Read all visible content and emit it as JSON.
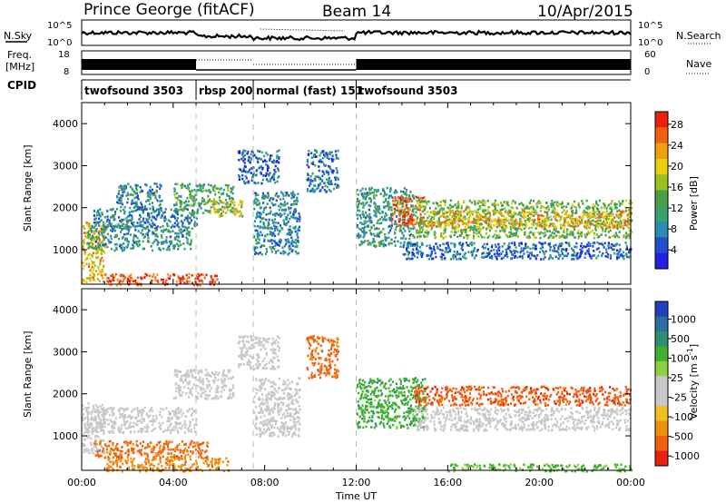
{
  "header": {
    "station": "Prince George (fitACF)",
    "beam": "Beam 14",
    "date": "10/Apr/2015"
  },
  "strip_labels": {
    "nsky": "N.Sky",
    "nsearch": "N.Search",
    "freq_line1": "Freq.",
    "freq_line2": "[MHz]",
    "nave": "Nave",
    "cpid": "CPID",
    "noise_ticks": [
      "10^5",
      "10^0"
    ],
    "freq_ticks": [
      "18",
      "8"
    ],
    "nave_ticks": [
      "60",
      "0"
    ]
  },
  "cpid_segments": [
    {
      "label": "twofsound 3503",
      "start": 0,
      "end": 5
    },
    {
      "label": "rbsp 200",
      "start": 5,
      "end": 7.5
    },
    {
      "label": "normal (fast) 151",
      "start": 7.5,
      "end": 12
    },
    {
      "label": "twofsound 3503",
      "start": 12,
      "end": 24
    }
  ],
  "colorbars": {
    "power": {
      "label": "Power [dB]",
      "ticks": [
        "28",
        "24",
        "20",
        "16",
        "12",
        "8",
        "4"
      ],
      "colors": [
        "#2020e0",
        "#2050d0",
        "#2a8cb0",
        "#3aa070",
        "#4aa040",
        "#9ac020",
        "#e8d010",
        "#f0a010",
        "#f06010",
        "#e82010"
      ]
    },
    "velocity": {
      "label": "Velocity [m s",
      "label_sup": "-1",
      "label_close": "]",
      "ticks": [
        "1000",
        "500",
        "100",
        "25",
        "-25",
        "-100",
        "-500",
        "-1000"
      ],
      "colors": [
        "#2040c0",
        "#2a70a0",
        "#2e9070",
        "#40b030",
        "#90d040",
        "#c8c8c8",
        "#c8c8c8",
        "#f0c020",
        "#f09010",
        "#f06010",
        "#e82010"
      ]
    }
  },
  "chart_data": [
    {
      "type": "heatmap",
      "name_panel": "power",
      "ylabel": "Slant Range [km]",
      "ylim": [
        180,
        4500
      ],
      "yticks": [
        "4000",
        "3000",
        "2000",
        "1000"
      ],
      "xlim": [
        0,
        24
      ],
      "xticks": [
        "00:00",
        "04:00",
        "08:00",
        "12:00",
        "16:00",
        "20:00",
        "00:00"
      ],
      "regions": [
        {
          "t0": 0.0,
          "t1": 1.0,
          "r0": 250,
          "r1": 1700,
          "v": 20
        },
        {
          "t0": 0.2,
          "t1": 4.8,
          "r0": 1000,
          "r1": 1600,
          "v": 10
        },
        {
          "t0": 0.5,
          "t1": 5.0,
          "r0": 1550,
          "r1": 2000,
          "v": 8
        },
        {
          "t0": 1.0,
          "t1": 6.0,
          "r0": 180,
          "r1": 450,
          "v": 27
        },
        {
          "t0": 1.5,
          "t1": 3.5,
          "r0": 2000,
          "r1": 2600,
          "v": 8
        },
        {
          "t0": 4.0,
          "t1": 6.6,
          "r0": 1900,
          "r1": 2600,
          "v": 12
        },
        {
          "t0": 5.5,
          "t1": 7.0,
          "r0": 1800,
          "r1": 2200,
          "v": 18
        },
        {
          "t0": 6.8,
          "t1": 8.6,
          "r0": 2600,
          "r1": 3400,
          "v": 6
        },
        {
          "t0": 7.5,
          "t1": 9.5,
          "r0": 900,
          "r1": 2400,
          "v": 8
        },
        {
          "t0": 9.8,
          "t1": 11.2,
          "r0": 2400,
          "r1": 3400,
          "v": 7
        },
        {
          "t0": 12.0,
          "t1": 14.5,
          "r0": 1100,
          "r1": 2500,
          "v": 10
        },
        {
          "t0": 13.5,
          "t1": 15.0,
          "r0": 1600,
          "r1": 2300,
          "v": 25
        },
        {
          "t0": 14.5,
          "t1": 24.0,
          "r0": 1300,
          "r1": 2200,
          "v": 14
        },
        {
          "t0": 15.0,
          "t1": 24.0,
          "r0": 1550,
          "r1": 1950,
          "v": 22
        },
        {
          "t0": 14.0,
          "t1": 24.0,
          "r0": 800,
          "r1": 1200,
          "v": 6
        }
      ]
    },
    {
      "type": "heatmap",
      "name_panel": "velocity",
      "ylabel": "Slant Range [km]",
      "ylim": [
        180,
        4500
      ],
      "yticks": [
        "4000",
        "3000",
        "2000",
        "1000"
      ],
      "xlim": [
        0,
        24
      ],
      "xticks": [
        "00:00",
        "04:00",
        "08:00",
        "12:00",
        "16:00",
        "20:00",
        "00:00"
      ],
      "xlabel": "Time UT",
      "regions": [
        {
          "t0": 0.0,
          "t1": 1.0,
          "r0": 600,
          "r1": 1800,
          "v": 0
        },
        {
          "t0": 0.2,
          "t1": 5.0,
          "r0": 1100,
          "r1": 1700,
          "v": 0
        },
        {
          "t0": 1.0,
          "t1": 6.5,
          "r0": 180,
          "r1": 500,
          "v": -200
        },
        {
          "t0": 0.5,
          "t1": 5.5,
          "r0": 500,
          "r1": 900,
          "v": -300
        },
        {
          "t0": 4.0,
          "t1": 6.6,
          "r0": 1900,
          "r1": 2600,
          "v": 0
        },
        {
          "t0": 6.8,
          "t1": 8.6,
          "r0": 2600,
          "r1": 3400,
          "v": 0
        },
        {
          "t0": 7.5,
          "t1": 9.5,
          "r0": 1000,
          "r1": 2400,
          "v": 0
        },
        {
          "t0": 9.8,
          "t1": 11.2,
          "r0": 2400,
          "r1": 3400,
          "v": -300
        },
        {
          "t0": 12.0,
          "t1": 15.0,
          "r0": 1200,
          "r1": 2400,
          "v": 80
        },
        {
          "t0": 14.5,
          "t1": 24.0,
          "r0": 1750,
          "r1": 2200,
          "v": -400
        },
        {
          "t0": 14.5,
          "t1": 24.0,
          "r0": 1150,
          "r1": 1700,
          "v": 0
        },
        {
          "t0": 16.0,
          "t1": 24.0,
          "r0": 180,
          "r1": 350,
          "v": 60
        }
      ]
    }
  ]
}
